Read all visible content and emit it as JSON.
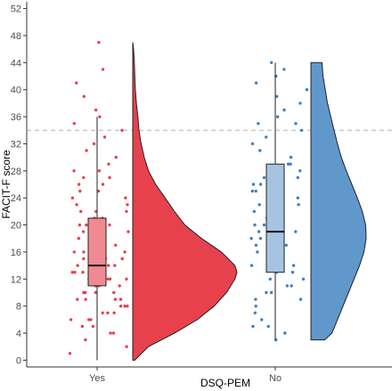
{
  "chart_data": {
    "type": "raincloud",
    "title": "",
    "xlabel": "DSQ-PEM",
    "ylabel": "FACIT-F score",
    "ylim": [
      -1,
      53
    ],
    "yticks": [
      0,
      4,
      8,
      12,
      16,
      20,
      24,
      28,
      32,
      36,
      40,
      44,
      48,
      52
    ],
    "reference_line": {
      "y": 34,
      "style": "dashed",
      "color": "#b3b3b3"
    },
    "grid": false,
    "legend": "none",
    "categories": [
      "Yes",
      "No"
    ],
    "groups": [
      {
        "category": "Yes",
        "point_color": "#e8414e",
        "box_fill": "#f08a92",
        "violin_fill": "#e8414e",
        "box": {
          "min": 0,
          "q1": 11,
          "median": 14,
          "q3": 21,
          "max": 36
        },
        "density": {
          "y": [
            0,
            2,
            4,
            6,
            8,
            10,
            12,
            13,
            14,
            16,
            18,
            20,
            22,
            24,
            26,
            28,
            30,
            32,
            34,
            36,
            38,
            40,
            42,
            44,
            46,
            47
          ],
          "density": [
            0.02,
            0.15,
            0.4,
            0.62,
            0.78,
            0.9,
            0.98,
            1.0,
            0.98,
            0.85,
            0.66,
            0.5,
            0.4,
            0.31,
            0.22,
            0.15,
            0.11,
            0.08,
            0.06,
            0.05,
            0.035,
            0.025,
            0.02,
            0.015,
            0.008,
            0.0
          ]
        },
        "points": [
          47,
          43,
          41,
          39,
          37,
          36,
          35,
          34,
          33,
          32,
          31,
          30,
          29,
          28,
          28,
          27,
          27,
          26,
          26,
          25,
          25,
          24,
          24,
          23,
          23,
          22,
          22,
          22,
          21,
          21,
          20,
          20,
          20,
          19,
          19,
          19,
          18,
          18,
          18,
          17,
          17,
          17,
          16,
          16,
          16,
          15,
          15,
          15,
          15,
          14,
          14,
          14,
          14,
          13,
          13,
          13,
          13,
          12,
          12,
          12,
          12,
          12,
          11,
          11,
          11,
          11,
          11,
          10,
          10,
          10,
          10,
          9,
          9,
          9,
          9,
          8,
          8,
          8,
          7,
          7,
          7,
          6,
          6,
          6,
          5,
          5,
          4,
          4,
          3,
          2,
          1
        ]
      },
      {
        "category": "No",
        "point_color": "#3f7fbf",
        "box_fill": "#a6c4e2",
        "violin_fill": "#6098cc",
        "box": {
          "min": 3,
          "q1": 13,
          "median": 19,
          "q3": 29,
          "max": 44
        },
        "density": {
          "y": [
            3,
            4,
            6,
            8,
            10,
            12,
            14,
            16,
            18,
            20,
            22,
            24,
            26,
            28,
            30,
            32,
            34,
            36,
            38,
            40,
            42,
            44
          ],
          "density": [
            0.25,
            0.38,
            0.48,
            0.58,
            0.68,
            0.78,
            0.88,
            0.96,
            1.0,
            0.99,
            0.93,
            0.84,
            0.74,
            0.64,
            0.55,
            0.48,
            0.42,
            0.36,
            0.3,
            0.26,
            0.22,
            0.2
          ]
        },
        "points": [
          44,
          43,
          42,
          41,
          40,
          39,
          38,
          37,
          36,
          35,
          35,
          34,
          33,
          32,
          31,
          30,
          29,
          29,
          28,
          27,
          27,
          26,
          26,
          25,
          25,
          24,
          24,
          23,
          23,
          22,
          22,
          21,
          21,
          20,
          20,
          20,
          19,
          19,
          19,
          18,
          18,
          17,
          17,
          16,
          16,
          15,
          15,
          14,
          14,
          13,
          13,
          12,
          12,
          11,
          11,
          10,
          10,
          9,
          9,
          8,
          7,
          6,
          5,
          5,
          4,
          3
        ]
      }
    ]
  }
}
